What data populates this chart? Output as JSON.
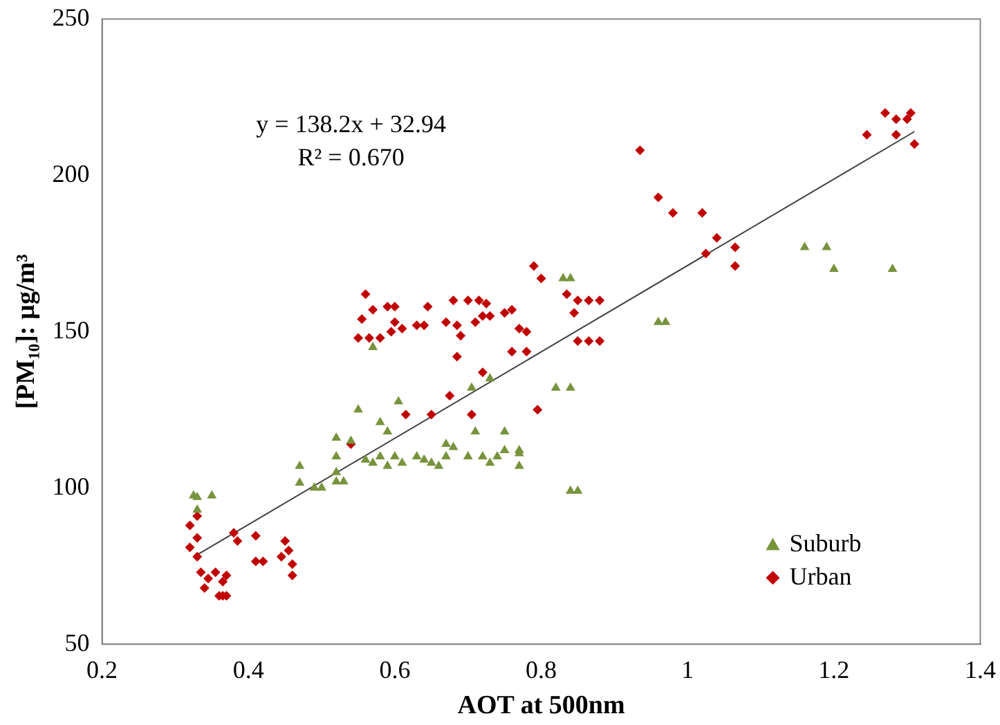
{
  "chart_data": {
    "type": "scatter",
    "xlabel": "AOT at 500nm",
    "ylabel": "[PM₁₀]: µg/m³",
    "xlim": [
      0.2,
      1.4
    ],
    "xticks": [
      0.2,
      0.4,
      0.6,
      0.8,
      1,
      1.2,
      1.4
    ],
    "ylim": [
      50,
      250
    ],
    "yticks": [
      50,
      100,
      150,
      200,
      250
    ],
    "grid": false,
    "legend": "bottom right",
    "annotations": [
      "y = 138.2x + 32.94",
      "R² = 0.670"
    ],
    "series": [
      {
        "name": "Suburb",
        "color": "#77933c",
        "marker": "triangle",
        "x": [
          0.325,
          0.35,
          0.33,
          0.33,
          0.47,
          0.47,
          0.49,
          0.5,
          0.52,
          0.52,
          0.52,
          0.53,
          0.52,
          0.54,
          0.55,
          0.57,
          0.58,
          0.59,
          0.605,
          0.56,
          0.57,
          0.58,
          0.59,
          0.6,
          0.61,
          0.63,
          0.64,
          0.65,
          0.66,
          0.67,
          0.67,
          0.68,
          0.7,
          0.705,
          0.71,
          0.72,
          0.73,
          0.73,
          0.74,
          0.75,
          0.75,
          0.77,
          0.77,
          0.77,
          0.82,
          0.84,
          0.83,
          0.84,
          0.84,
          0.85,
          0.96,
          0.97,
          1.16,
          1.19,
          1.2,
          1.28
        ],
        "values": [
          97.5,
          97.5,
          93,
          97,
          101.6,
          107,
          100,
          100,
          102,
          105,
          110,
          102,
          116,
          115,
          125,
          145,
          121,
          118,
          127.6,
          109,
          108,
          110,
          107,
          110,
          108,
          110,
          109,
          108,
          107,
          114,
          110,
          113,
          110,
          132,
          118,
          110,
          108,
          135,
          110,
          118,
          112,
          112,
          107,
          111,
          132,
          132,
          167,
          167,
          99,
          99,
          153,
          153,
          177,
          177,
          170,
          170
        ]
      },
      {
        "name": "Urban",
        "color": "#c00000",
        "marker": "diamond",
        "x": [
          0.33,
          0.32,
          0.33,
          0.32,
          0.33,
          0.335,
          0.345,
          0.355,
          0.365,
          0.37,
          0.34,
          0.36,
          0.365,
          0.37,
          0.38,
          0.385,
          0.41,
          0.41,
          0.42,
          0.45,
          0.445,
          0.455,
          0.46,
          0.46,
          0.54,
          0.555,
          0.55,
          0.565,
          0.58,
          0.56,
          0.57,
          0.59,
          0.6,
          0.595,
          0.61,
          0.6,
          0.63,
          0.64,
          0.645,
          0.67,
          0.68,
          0.685,
          0.69,
          0.7,
          0.71,
          0.715,
          0.72,
          0.725,
          0.73,
          0.75,
          0.76,
          0.77,
          0.78,
          0.685,
          0.76,
          0.78,
          0.72,
          0.675,
          0.615,
          0.65,
          0.705,
          0.795,
          0.79,
          0.8,
          0.835,
          0.845,
          0.85,
          0.865,
          0.88,
          0.85,
          0.865,
          0.88,
          0.935,
          0.96,
          0.98,
          1.02,
          1.025,
          1.04,
          1.065,
          1.065,
          1.245,
          1.27,
          1.285,
          1.3,
          1.305,
          1.285,
          1.31
        ],
        "values": [
          91,
          88,
          84,
          81,
          78,
          73,
          71,
          73,
          70,
          72,
          68,
          65.5,
          65.5,
          65.5,
          85.6,
          83,
          84.7,
          76.5,
          76.5,
          83,
          78,
          80,
          75.6,
          72,
          114,
          154,
          148,
          148,
          148,
          162,
          157,
          158,
          158,
          150,
          151,
          153,
          152,
          152,
          158,
          153,
          160,
          152,
          148.7,
          160,
          153,
          160,
          155,
          159,
          155,
          156,
          157,
          151,
          150,
          142,
          143.6,
          143.6,
          137,
          129.5,
          123.5,
          123.5,
          123.5,
          125,
          171,
          167,
          162,
          156,
          160,
          160,
          160,
          147,
          147,
          147,
          208,
          193,
          188,
          188,
          175,
          180,
          177,
          171,
          213,
          220,
          218,
          218,
          220,
          213,
          210
        ]
      },
      {
        "type": "line",
        "color": "#404040",
        "marker": "none",
        "x": [
          0.33,
          1.31
        ],
        "values": [
          78.6,
          214
        ]
      }
    ]
  }
}
